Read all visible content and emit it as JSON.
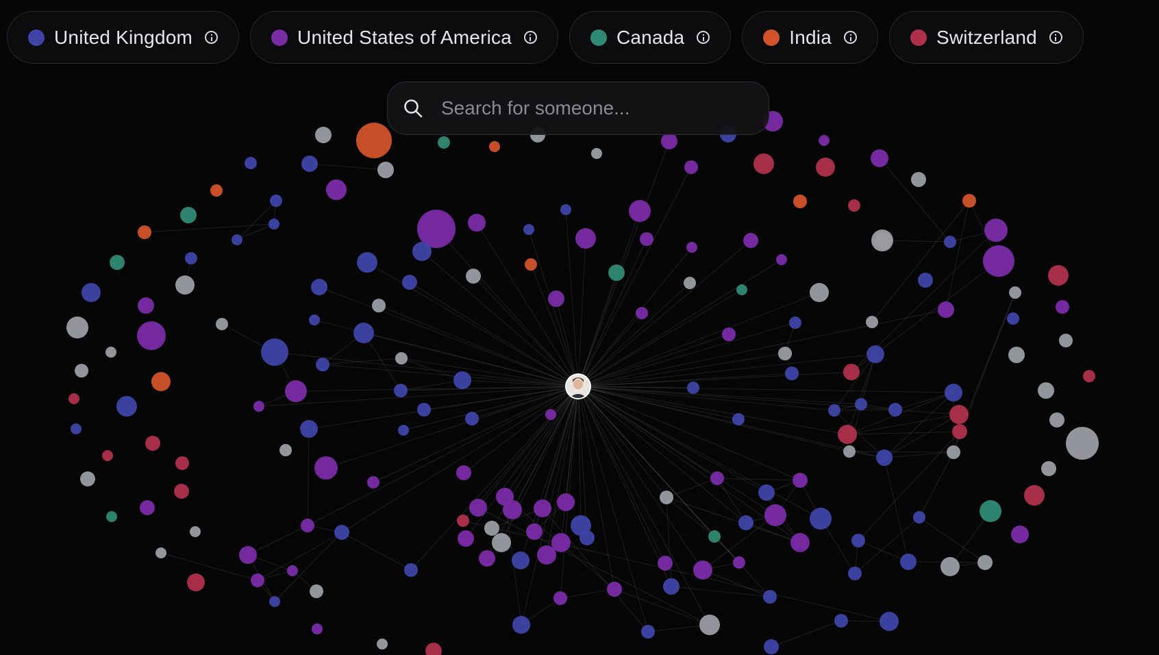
{
  "legend": [
    {
      "label": "United Kingdom",
      "color": "#3e44a8",
      "icon": "info-icon"
    },
    {
      "label": "United States of America",
      "color": "#7a2ba6",
      "icon": "info-icon"
    },
    {
      "label": "Canada",
      "color": "#2f8a74",
      "icon": "info-icon"
    },
    {
      "label": "India",
      "color": "#d2532a",
      "icon": "info-icon"
    },
    {
      "label": "Switzerland",
      "color": "#b0304c",
      "icon": "info-icon"
    }
  ],
  "colors": {
    "uk": "#3e44a8",
    "us": "#7a2ba6",
    "ca": "#2f8a74",
    "in": "#d2532a",
    "ch": "#b0304c",
    "other": "#9a9ea4"
  },
  "search": {
    "placeholder": "Search for someone...",
    "icon": "search-icon"
  },
  "center": {
    "icon": "avatar"
  }
}
